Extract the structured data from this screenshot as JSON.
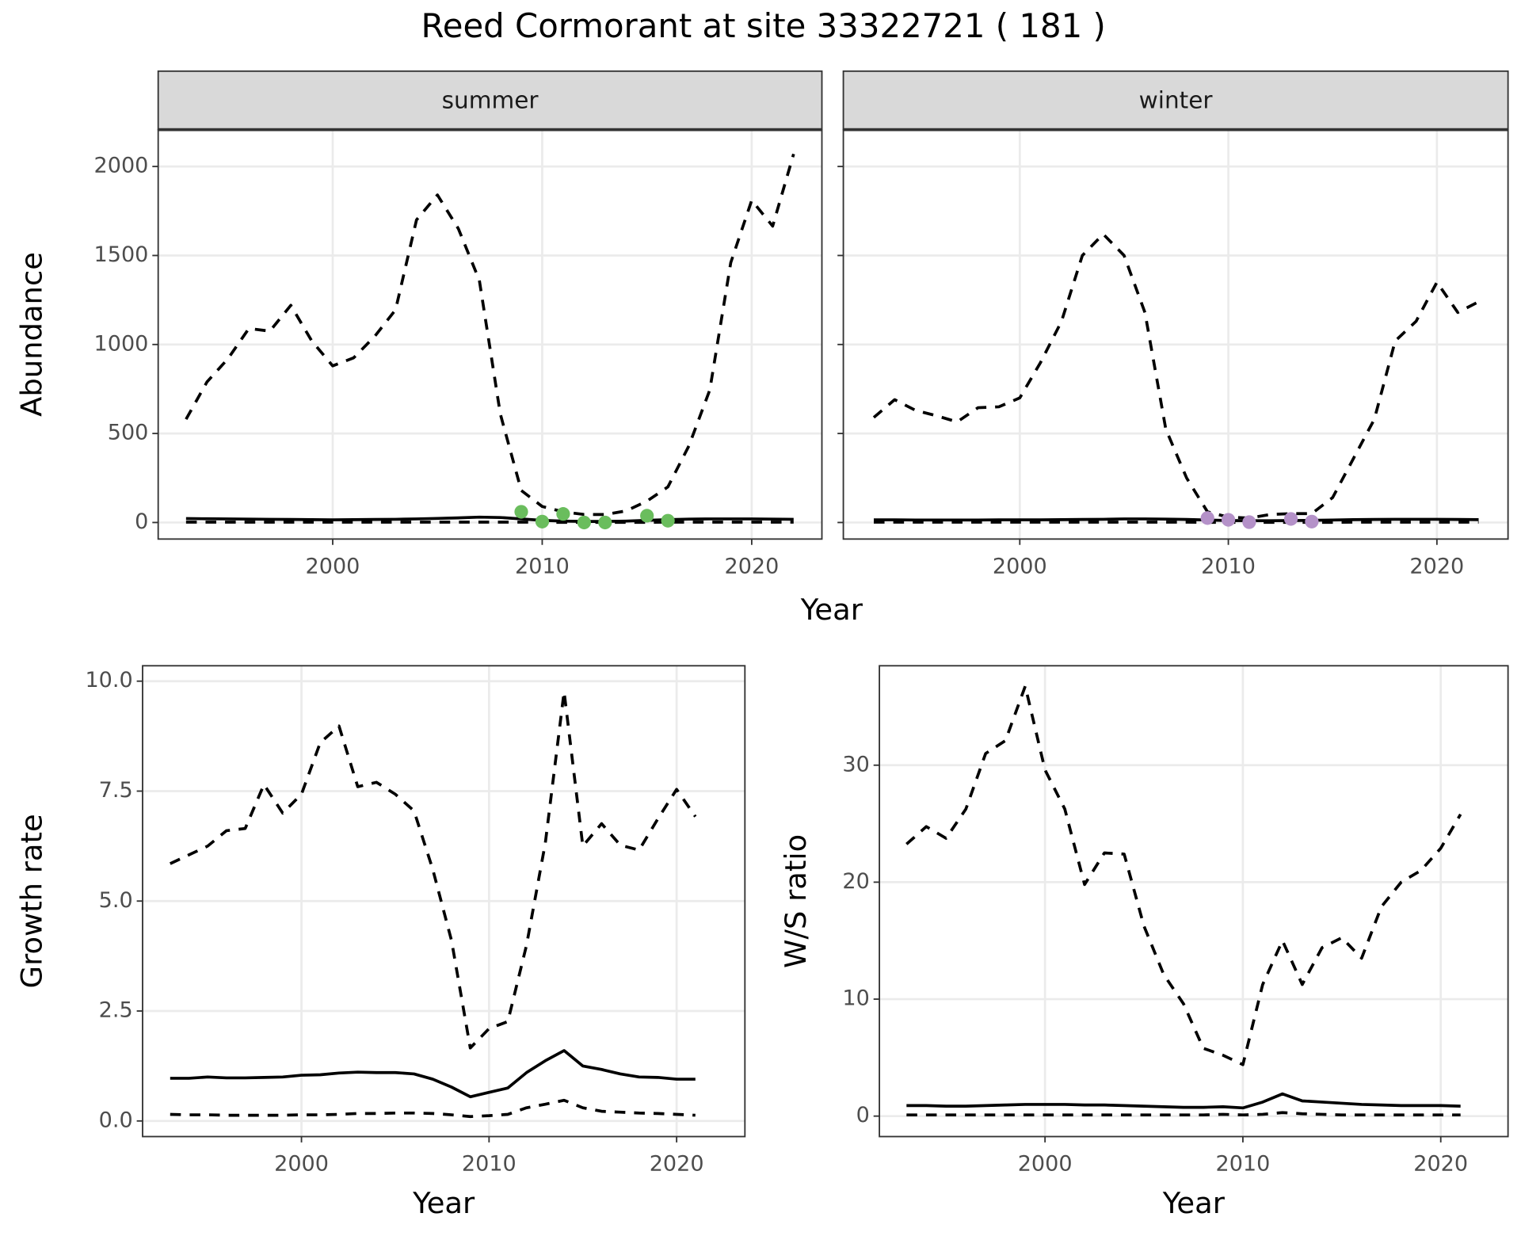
{
  "title": "Reed Cormorant at site 33322721 ( 181 )",
  "facet_xlabel": "Year",
  "chart_data": [
    {
      "type": "line",
      "strip": "summer",
      "ylabel": "Abundance",
      "show_yticklabels": true,
      "grid": true,
      "x": [
        1993,
        1994,
        1995,
        1996,
        1997,
        1998,
        1999,
        2000,
        2001,
        2002,
        2003,
        2004,
        2005,
        2006,
        2007,
        2008,
        2009,
        2010,
        2011,
        2012,
        2013,
        2014,
        2015,
        2016,
        2017,
        2018,
        2019,
        2020,
        2021,
        2022
      ],
      "xlim": [
        1991.67,
        2023.35
      ],
      "xticks": [
        2000,
        2010,
        2020
      ],
      "ylim": [
        -93,
        2207
      ],
      "yticks": [
        0,
        500,
        1000,
        1500,
        2000
      ],
      "series": [
        {
          "color": "#000000",
          "dashed": true,
          "values": [
            580,
            790,
            920,
            1090,
            1075,
            1220,
            1020,
            880,
            925,
            1045,
            1195,
            1700,
            1840,
            1650,
            1360,
            610,
            180,
            90,
            60,
            45,
            45,
            65,
            120,
            200,
            430,
            745,
            1460,
            1810,
            1665,
            2070
          ]
        },
        {
          "color": "#000000",
          "dashed": false,
          "values": [
            22,
            21,
            20,
            19,
            18,
            17,
            16,
            15,
            16,
            17,
            18,
            20,
            23,
            26,
            30,
            28,
            20,
            12,
            8,
            6,
            6,
            8,
            12,
            16,
            19,
            20,
            20,
            20,
            19,
            18
          ]
        },
        {
          "color": "#000000",
          "dashed": true,
          "values": [
            2,
            2,
            2,
            2,
            2,
            2,
            2,
            2,
            2,
            2,
            2,
            2,
            2,
            2,
            2,
            2,
            2,
            1,
            1,
            1,
            1,
            1,
            1,
            2,
            2,
            2,
            2,
            2,
            2,
            2
          ]
        },
        {
          "color": "#6abd5d",
          "marker": "point",
          "values": [
            null,
            null,
            null,
            null,
            null,
            null,
            null,
            null,
            null,
            null,
            null,
            null,
            null,
            null,
            null,
            null,
            60,
            5,
            48,
            0,
            0,
            null,
            38,
            10,
            null,
            null,
            null,
            null,
            null,
            null
          ]
        }
      ]
    },
    {
      "type": "line",
      "strip": "winter",
      "show_yticklabels": false,
      "grid": true,
      "x": [
        1993,
        1994,
        1995,
        1996,
        1997,
        1998,
        1999,
        2000,
        2001,
        2002,
        2003,
        2004,
        2005,
        2006,
        2007,
        2008,
        2009,
        2010,
        2011,
        2012,
        2013,
        2014,
        2015,
        2016,
        2017,
        2018,
        2019,
        2020,
        2021,
        2022
      ],
      "xlim": [
        1991.54,
        2023.41
      ],
      "xticks": [
        2000,
        2010,
        2020
      ],
      "ylim": [
        -93,
        2207
      ],
      "yticks": [
        0,
        500,
        1000,
        1500,
        2000
      ],
      "series": [
        {
          "color": "#000000",
          "dashed": true,
          "values": [
            590,
            690,
            630,
            600,
            565,
            645,
            650,
            700,
            900,
            1130,
            1500,
            1620,
            1500,
            1180,
            525,
            250,
            60,
            30,
            25,
            45,
            50,
            50,
            140,
            360,
            580,
            1020,
            1130,
            1350,
            1180,
            1240
          ]
        },
        {
          "color": "#000000",
          "dashed": false,
          "values": [
            15,
            15,
            14,
            14,
            14,
            14,
            15,
            15,
            15,
            16,
            17,
            18,
            20,
            20,
            19,
            17,
            14,
            11,
            10,
            10,
            11,
            12,
            14,
            16,
            17,
            18,
            18,
            18,
            17,
            16
          ]
        },
        {
          "color": "#000000",
          "dashed": true,
          "values": [
            2,
            2,
            2,
            2,
            2,
            2,
            2,
            2,
            2,
            2,
            2,
            2,
            2,
            2,
            2,
            2,
            1,
            1,
            1,
            1,
            1,
            1,
            1,
            2,
            2,
            2,
            2,
            2,
            2,
            2
          ]
        },
        {
          "color": "#b491c8",
          "marker": "point",
          "values": [
            null,
            null,
            null,
            null,
            null,
            null,
            null,
            null,
            null,
            null,
            null,
            null,
            null,
            null,
            null,
            null,
            25,
            15,
            2,
            null,
            20,
            5,
            null,
            null,
            null,
            null,
            null,
            null,
            null,
            null
          ]
        }
      ]
    },
    {
      "type": "line",
      "ylabel": "Growth rate",
      "xlabel": "Year",
      "show_yticklabels": true,
      "grid": true,
      "x": [
        1993,
        1994,
        1995,
        1996,
        1997,
        1998,
        1999,
        2000,
        2001,
        2002,
        2003,
        2004,
        2005,
        2006,
        2007,
        2008,
        2009,
        2010,
        2011,
        2012,
        2013,
        2014,
        2015,
        2016,
        2017,
        2018,
        2019,
        2020,
        2021
      ],
      "xlim": [
        1991.53,
        2023.64
      ],
      "xticks": [
        2000,
        2010,
        2020
      ],
      "ylim": [
        -0.355,
        10.35
      ],
      "yticks": [
        {
          "value": 0,
          "label": "0.0"
        },
        2.5,
        {
          "value": 5,
          "label": "5.0"
        },
        7.5,
        {
          "value": 10,
          "label": "10.0"
        }
      ],
      "series": [
        {
          "color": "#000000",
          "dashed": true,
          "values": [
            5.85,
            6.05,
            6.25,
            6.6,
            6.65,
            7.65,
            7.0,
            7.43,
            8.6,
            8.98,
            7.6,
            7.7,
            7.43,
            7.05,
            5.72,
            4.1,
            1.66,
            2.1,
            2.26,
            4.0,
            6.32,
            9.76,
            6.25,
            6.76,
            6.27,
            6.16,
            6.87,
            7.54,
            6.92
          ]
        },
        {
          "color": "#000000",
          "dashed": false,
          "values": [
            0.97,
            0.97,
            1.0,
            0.98,
            0.98,
            0.99,
            1.0,
            1.04,
            1.05,
            1.09,
            1.11,
            1.1,
            1.1,
            1.07,
            0.95,
            0.77,
            0.55,
            0.65,
            0.75,
            1.1,
            1.37,
            1.6,
            1.25,
            1.17,
            1.07,
            1.0,
            0.99,
            0.95,
            0.95
          ]
        },
        {
          "color": "#000000",
          "dashed": true,
          "values": [
            0.15,
            0.14,
            0.14,
            0.13,
            0.13,
            0.13,
            0.13,
            0.14,
            0.14,
            0.15,
            0.17,
            0.17,
            0.18,
            0.18,
            0.17,
            0.14,
            0.1,
            0.12,
            0.15,
            0.3,
            0.38,
            0.47,
            0.3,
            0.22,
            0.2,
            0.18,
            0.17,
            0.15,
            0.13
          ]
        }
      ]
    },
    {
      "type": "line",
      "ylabel": "W/S ratio",
      "xlabel": "Year",
      "show_yticklabels": true,
      "grid": true,
      "x": [
        1993,
        1994,
        1995,
        1996,
        1997,
        1998,
        1999,
        2000,
        2001,
        2002,
        2003,
        2004,
        2005,
        2006,
        2007,
        2008,
        2009,
        2010,
        2011,
        2012,
        2013,
        2014,
        2015,
        2016,
        2017,
        2018,
        2019,
        2020,
        2021
      ],
      "xlim": [
        1991.63,
        2023.4
      ],
      "xticks": [
        2000,
        2010,
        2020
      ],
      "ylim": [
        -1.75,
        38.5
      ],
      "yticks": [
        0,
        10,
        20,
        30
      ],
      "series": [
        {
          "color": "#000000",
          "dashed": true,
          "values": [
            23.25,
            24.75,
            23.75,
            26.25,
            31,
            32.1,
            36.75,
            29.6,
            26.25,
            19.8,
            22.5,
            22.4,
            16.25,
            12.1,
            9.6,
            5.8,
            5.2,
            4.4,
            11.25,
            15,
            11.25,
            14.4,
            15.25,
            13.5,
            17.9,
            20,
            21,
            22.9,
            25.8
          ]
        },
        {
          "color": "#000000",
          "dashed": false,
          "values": [
            0.9,
            0.9,
            0.85,
            0.85,
            0.9,
            0.95,
            1,
            1,
            1,
            0.95,
            0.95,
            0.9,
            0.85,
            0.8,
            0.75,
            0.75,
            0.8,
            0.7,
            1.2,
            1.9,
            1.3,
            1.2,
            1.1,
            1.0,
            0.95,
            0.9,
            0.9,
            0.9,
            0.85
          ]
        },
        {
          "color": "#000000",
          "dashed": true,
          "values": [
            0.1,
            0.1,
            0.1,
            0.1,
            0.1,
            0.1,
            0.1,
            0.1,
            0.1,
            0.1,
            0.1,
            0.1,
            0.1,
            0.1,
            0.1,
            0.1,
            0.15,
            0.1,
            0.15,
            0.3,
            0.2,
            0.15,
            0.1,
            0.1,
            0.1,
            0.1,
            0.1,
            0.1,
            0.1
          ]
        }
      ]
    }
  ]
}
